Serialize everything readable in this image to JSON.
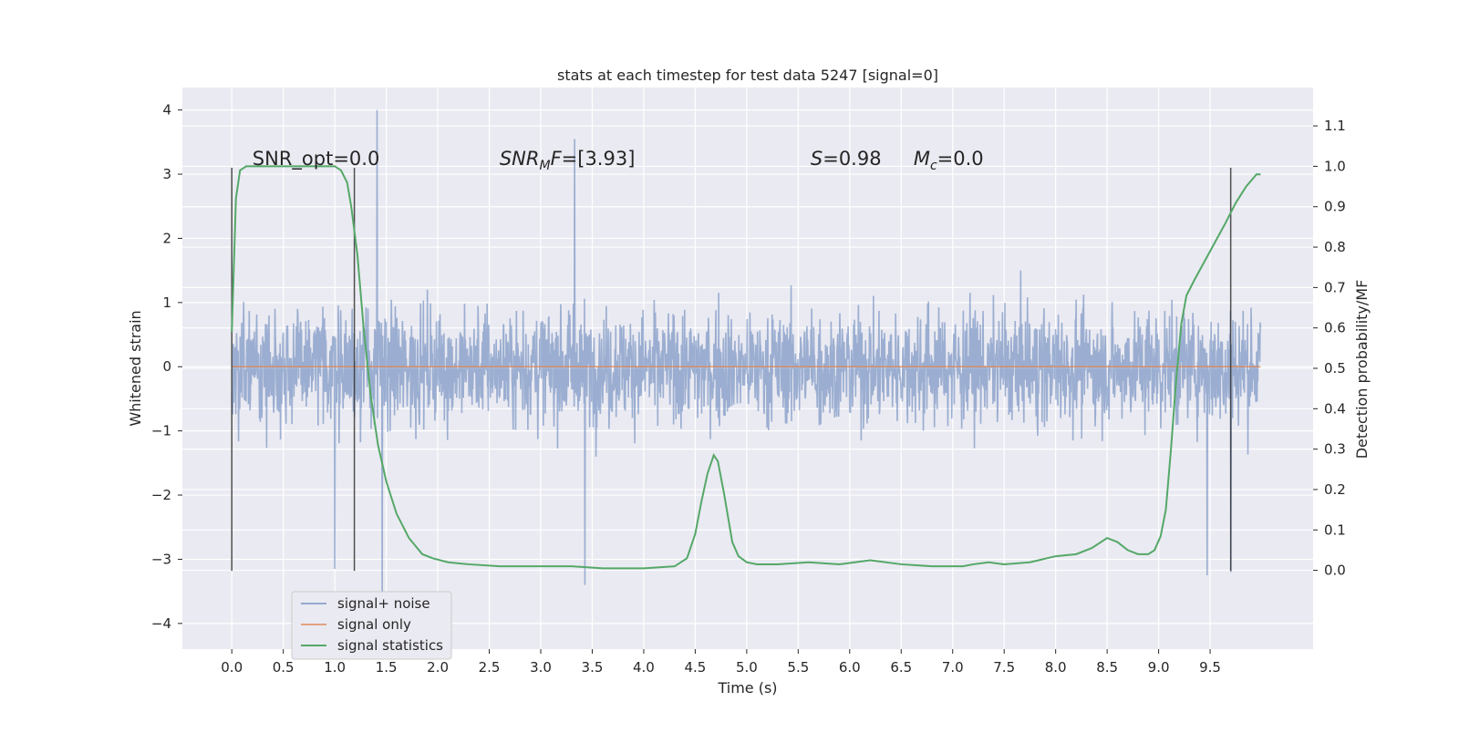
{
  "chart_data": {
    "type": "line",
    "title": "stats at each timestep for test data 5247 [signal=0]",
    "xlabel": "Time (s)",
    "ylabel": "Whitened strain",
    "ylabel_right": "Detection probability/MF",
    "xlim": [
      -0.48,
      10.5
    ],
    "ylim": [
      -4.4,
      4.35
    ],
    "ylim_right": [
      -0.195,
      1.195
    ],
    "x_ticks": [
      0.0,
      0.5,
      1.0,
      1.5,
      2.0,
      2.5,
      3.0,
      3.5,
      4.0,
      4.5,
      5.0,
      5.5,
      6.0,
      6.5,
      7.0,
      7.5,
      8.0,
      8.5,
      9.0,
      9.5
    ],
    "x_tick_labels": [
      "0.0",
      "0.5",
      "1.0",
      "1.5",
      "2.0",
      "2.5",
      "3.0",
      "3.5",
      "4.0",
      "4.5",
      "5.0",
      "5.5",
      "6.0",
      "6.5",
      "7.0",
      "7.5",
      "8.0",
      "8.5",
      "9.0",
      "9.5"
    ],
    "y_ticks": [
      4,
      3,
      2,
      1,
      0,
      -1,
      -2,
      -3,
      -4
    ],
    "y_tick_labels": [
      "4",
      "3",
      "2",
      "1",
      "0",
      "−1",
      "−2",
      "−3",
      "−4"
    ],
    "y_right_ticks": [
      1.1,
      1.0,
      0.9,
      0.8,
      0.7,
      0.6,
      0.5,
      0.4,
      0.3,
      0.2,
      0.1,
      0.0
    ],
    "y_right_tick_labels": [
      "1.1",
      "1.0",
      "0.9",
      "0.8",
      "0.7",
      "0.6",
      "0.5",
      "0.4",
      "0.3",
      "0.2",
      "0.1",
      "0.0"
    ],
    "grid": true,
    "legend_position": "lower-left",
    "series": [
      {
        "name": "signal+ noise",
        "axis": "left",
        "color": "#4c72b0",
        "opacity": 0.5,
        "kind": "noise",
        "x_range": [
          0.0,
          9.99
        ],
        "typical_envelope": [
          -1.7,
          1.9
        ],
        "notable_peaks": [
          [
            1.41,
            4.0
          ],
          [
            3.33,
            3.55
          ],
          [
            1.46,
            -3.6
          ],
          [
            3.43,
            -3.4
          ],
          [
            9.47,
            -3.25
          ],
          [
            9.7,
            -3.2
          ],
          [
            1.0,
            -3.15
          ]
        ]
      },
      {
        "name": "signal only",
        "axis": "left",
        "color": "#dd8452",
        "x": [
          0.0,
          9.99
        ],
        "y": [
          0.0,
          0.0
        ]
      },
      {
        "name": "signal statistics",
        "axis": "right",
        "color": "#55a868",
        "x": [
          0.0,
          0.04,
          0.08,
          0.14,
          0.2,
          0.3,
          0.4,
          0.6,
          0.8,
          1.0,
          1.06,
          1.12,
          1.16,
          1.22,
          1.28,
          1.35,
          1.42,
          1.5,
          1.6,
          1.72,
          1.85,
          1.95,
          2.1,
          2.3,
          2.6,
          3.0,
          3.3,
          3.6,
          4.0,
          4.3,
          4.42,
          4.5,
          4.56,
          4.62,
          4.68,
          4.72,
          4.78,
          4.86,
          4.92,
          5.0,
          5.1,
          5.3,
          5.6,
          5.9,
          6.2,
          6.5,
          6.8,
          7.1,
          7.2,
          7.35,
          7.5,
          7.75,
          8.0,
          8.2,
          8.35,
          8.5,
          8.6,
          8.7,
          8.8,
          8.9,
          8.96,
          9.02,
          9.07,
          9.12,
          9.17,
          9.22,
          9.27,
          9.35,
          9.5,
          9.65,
          9.75,
          9.85,
          9.95,
          9.99
        ],
        "y": [
          0.59,
          0.92,
          0.99,
          1.0,
          1.0,
          1.0,
          1.0,
          1.0,
          1.0,
          1.0,
          0.99,
          0.96,
          0.9,
          0.78,
          0.6,
          0.43,
          0.31,
          0.22,
          0.14,
          0.08,
          0.04,
          0.03,
          0.02,
          0.015,
          0.01,
          0.01,
          0.01,
          0.005,
          0.005,
          0.01,
          0.03,
          0.09,
          0.17,
          0.24,
          0.285,
          0.27,
          0.19,
          0.07,
          0.035,
          0.02,
          0.015,
          0.015,
          0.02,
          0.015,
          0.025,
          0.015,
          0.01,
          0.01,
          0.015,
          0.02,
          0.015,
          0.02,
          0.035,
          0.04,
          0.055,
          0.08,
          0.07,
          0.05,
          0.04,
          0.04,
          0.05,
          0.085,
          0.15,
          0.3,
          0.47,
          0.61,
          0.68,
          0.72,
          0.79,
          0.86,
          0.91,
          0.95,
          0.98,
          0.98
        ]
      }
    ],
    "vertical_lines": [
      0.0,
      1.19,
      9.7
    ],
    "vertical_line_range": [
      -3.18,
      3.1
    ],
    "annotations": [
      {
        "text": "SNR_opt=0.0",
        "x": 0.2,
        "y": 3.1
      },
      {
        "html_base": "SNR",
        "html_sub": "M",
        "html_tail": "F=[3.93]",
        "x": 2.6,
        "y": 3.1
      },
      {
        "html_base": "S",
        "html_sub": "",
        "html_tail": "=0.98",
        "x": 5.62,
        "y": 3.1
      },
      {
        "html_base": "M",
        "html_sub": "c",
        "html_tail": "=0.0",
        "x": 6.62,
        "y": 3.1
      }
    ],
    "colors": {
      "plot_background": "#eaeaf2",
      "grid": "#ffffff",
      "vertical_lines": "#333333"
    }
  }
}
